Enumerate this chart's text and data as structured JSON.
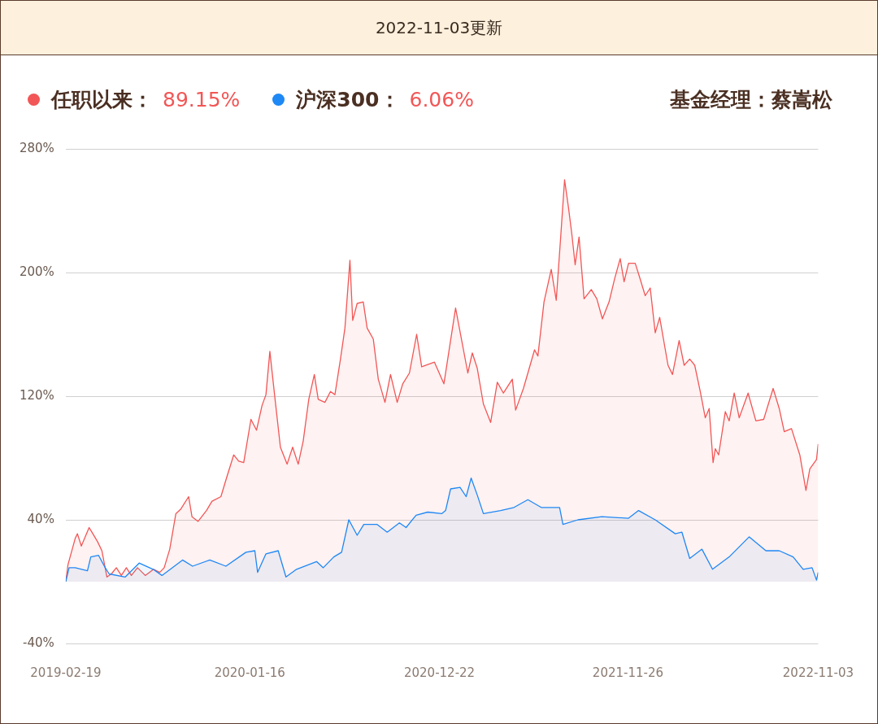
{
  "chart_data": {
    "type": "area",
    "title": "2022-11-03更新",
    "subtitle": "基金经理：蔡嵩松",
    "annotations": [
      "89.15%",
      "6.06%"
    ],
    "xlim": [
      "2019-02-19",
      "2022-11-03"
    ],
    "xticks": [
      "2019-02-19",
      "2020-01-16",
      "2020-12-22",
      "2021-11-26",
      "2022-11-03"
    ],
    "ylim": [
      -40,
      280
    ],
    "yticks": [
      {
        "value": -40,
        "label": "-40%"
      },
      {
        "value": 40,
        "label": "40%"
      },
      {
        "value": 120,
        "label": "120%"
      },
      {
        "value": 200,
        "label": "200%"
      },
      {
        "value": 280,
        "label": "280%"
      }
    ],
    "grid": "y",
    "legend": "top left",
    "marker": "none",
    "line_style": "solid",
    "series": [
      {
        "name": "任职以来：",
        "color": "#f25656",
        "x": [
          "2019-02-19",
          "2019-02-23",
          "2019-03-08",
          "2019-03-12",
          "2019-03-19",
          "2019-04-02",
          "2019-04-07",
          "2019-04-17",
          "2019-04-25",
          "2019-05-04",
          "2019-05-12",
          "2019-05-21",
          "2019-05-30",
          "2019-06-08",
          "2019-06-17",
          "2019-06-28",
          "2019-07-12",
          "2019-07-27",
          "2019-08-07",
          "2019-08-15",
          "2019-08-25",
          "2019-09-05",
          "2019-09-14",
          "2019-09-28",
          "2019-10-04",
          "2019-10-15",
          "2019-10-30",
          "2019-11-09",
          "2019-11-25",
          "2019-12-05",
          "2019-12-18",
          "2019-12-27",
          "2020-01-05",
          "2020-01-18",
          "2020-01-28",
          "2020-02-07",
          "2020-02-14",
          "2020-02-21",
          "2020-03-02",
          "2020-03-11",
          "2020-03-23",
          "2020-04-02",
          "2020-04-12",
          "2020-04-21",
          "2020-05-01",
          "2020-05-11",
          "2020-05-18",
          "2020-05-30",
          "2020-06-09",
          "2020-06-17",
          "2020-06-27",
          "2020-07-05",
          "2020-07-14",
          "2020-07-19",
          "2020-07-27",
          "2020-08-07",
          "2020-08-14",
          "2020-08-25",
          "2020-09-03",
          "2020-09-15",
          "2020-09-25",
          "2020-10-07",
          "2020-10-17",
          "2020-10-29",
          "2020-11-11",
          "2020-11-20",
          "2020-12-13",
          "2020-12-30",
          "2021-01-20",
          "2021-02-11",
          "2021-02-19",
          "2021-02-28",
          "2021-03-11",
          "2021-03-24",
          "2021-04-05",
          "2021-04-16",
          "2021-05-02",
          "2021-05-08",
          "2021-05-22",
          "2021-06-11",
          "2021-06-17",
          "2021-06-28",
          "2021-07-11",
          "2021-07-20",
          "2021-07-28",
          "2021-08-04",
          "2021-08-11",
          "2021-08-17",
          "2021-08-23",
          "2021-08-30",
          "2021-09-08",
          "2021-09-21",
          "2021-10-01",
          "2021-10-11",
          "2021-10-23",
          "2021-11-02",
          "2021-11-12",
          "2021-11-19",
          "2021-11-27",
          "2021-12-09",
          "2021-12-16",
          "2021-12-27",
          "2022-01-05",
          "2022-01-14",
          "2022-01-22",
          "2022-02-06",
          "2022-02-14",
          "2022-02-26",
          "2022-03-07",
          "2022-03-17",
          "2022-03-26",
          "2022-04-05",
          "2022-04-14",
          "2022-04-21",
          "2022-04-28",
          "2022-05-02",
          "2022-05-08",
          "2022-05-20",
          "2022-05-27",
          "2022-06-05",
          "2022-06-14",
          "2022-06-30",
          "2022-07-14",
          "2022-07-28",
          "2022-08-14",
          "2022-08-25",
          "2022-09-03",
          "2022-09-16",
          "2022-10-01",
          "2022-10-12",
          "2022-10-19",
          "2022-10-31",
          "2022-11-03"
        ],
        "values": [
          0,
          11,
          28,
          31,
          23,
          35,
          32,
          26,
          20,
          3,
          5,
          9,
          4,
          9,
          4,
          9,
          4,
          8,
          6,
          9,
          21,
          44,
          47,
          55,
          42,
          39,
          46,
          52,
          55,
          67,
          82,
          78,
          77,
          105,
          98,
          114,
          121,
          149,
          116,
          87,
          76,
          87,
          76,
          91,
          118,
          134,
          118,
          116,
          123,
          121,
          144,
          164,
          208,
          169,
          180,
          181,
          164,
          157,
          131,
          116,
          134,
          116,
          128,
          135,
          160,
          139,
          142,
          128,
          177,
          135,
          148,
          138,
          115,
          103,
          129,
          122,
          131,
          111,
          125,
          150,
          146,
          181,
          202,
          182,
          223,
          260,
          242,
          225,
          205,
          223,
          183,
          189,
          183,
          170,
          181,
          196,
          209,
          194,
          206,
          206,
          198,
          185,
          190,
          161,
          171,
          140,
          134,
          156,
          140,
          144,
          140,
          123,
          106,
          112,
          77,
          86,
          82,
          110,
          104,
          122,
          106,
          122,
          104,
          105,
          125,
          112,
          97,
          99,
          82,
          59,
          73,
          79,
          89
        ]
      },
      {
        "name": "沪深300：",
        "color": "#1e88f5",
        "x": [
          "2019-02-19",
          "2019-02-25",
          "2019-03-08",
          "2019-03-30",
          "2019-04-05",
          "2019-04-19",
          "2019-05-01",
          "2019-05-08",
          "2019-06-06",
          "2019-07-01",
          "2019-07-26",
          "2019-08-11",
          "2019-09-17",
          "2019-10-05",
          "2019-11-05",
          "2019-12-04",
          "2020-01-09",
          "2020-01-25",
          "2020-01-30",
          "2020-02-14",
          "2020-03-07",
          "2020-03-21",
          "2020-04-09",
          "2020-05-15",
          "2020-05-27",
          "2020-06-15",
          "2020-06-29",
          "2020-07-12",
          "2020-07-27",
          "2020-08-08",
          "2020-09-01",
          "2020-09-19",
          "2020-10-11",
          "2020-10-23",
          "2020-11-10",
          "2020-12-01",
          "2020-12-26",
          "2021-01-02",
          "2021-01-11",
          "2021-01-28",
          "2021-02-08",
          "2021-02-17",
          "2021-02-28",
          "2021-03-11",
          "2021-04-11",
          "2021-05-05",
          "2021-05-30",
          "2021-06-23",
          "2021-07-26",
          "2021-08-01",
          "2021-08-28",
          "2021-10-10",
          "2021-11-27",
          "2021-12-15",
          "2022-01-14",
          "2022-02-19",
          "2022-03-03",
          "2022-03-17",
          "2022-04-08",
          "2022-04-27",
          "2022-05-27",
          "2022-07-02",
          "2022-08-01",
          "2022-08-25",
          "2022-09-19",
          "2022-10-07",
          "2022-10-23",
          "2022-10-31",
          "2022-11-03"
        ],
        "values": [
          0,
          9,
          9,
          7,
          16,
          17,
          9,
          5,
          3,
          12,
          8,
          4,
          14,
          10,
          14,
          10,
          19,
          20,
          6,
          18,
          20,
          3,
          8,
          13,
          9,
          16,
          19,
          40,
          30,
          37,
          37,
          32,
          38,
          35,
          43,
          45,
          44,
          46,
          60,
          61,
          55,
          67,
          56,
          44,
          46,
          48,
          53,
          48,
          48,
          37,
          40,
          42,
          41,
          46,
          40,
          31,
          32,
          15,
          21,
          8,
          16,
          29,
          20,
          20,
          16,
          8,
          9,
          1,
          6
        ]
      }
    ]
  }
}
